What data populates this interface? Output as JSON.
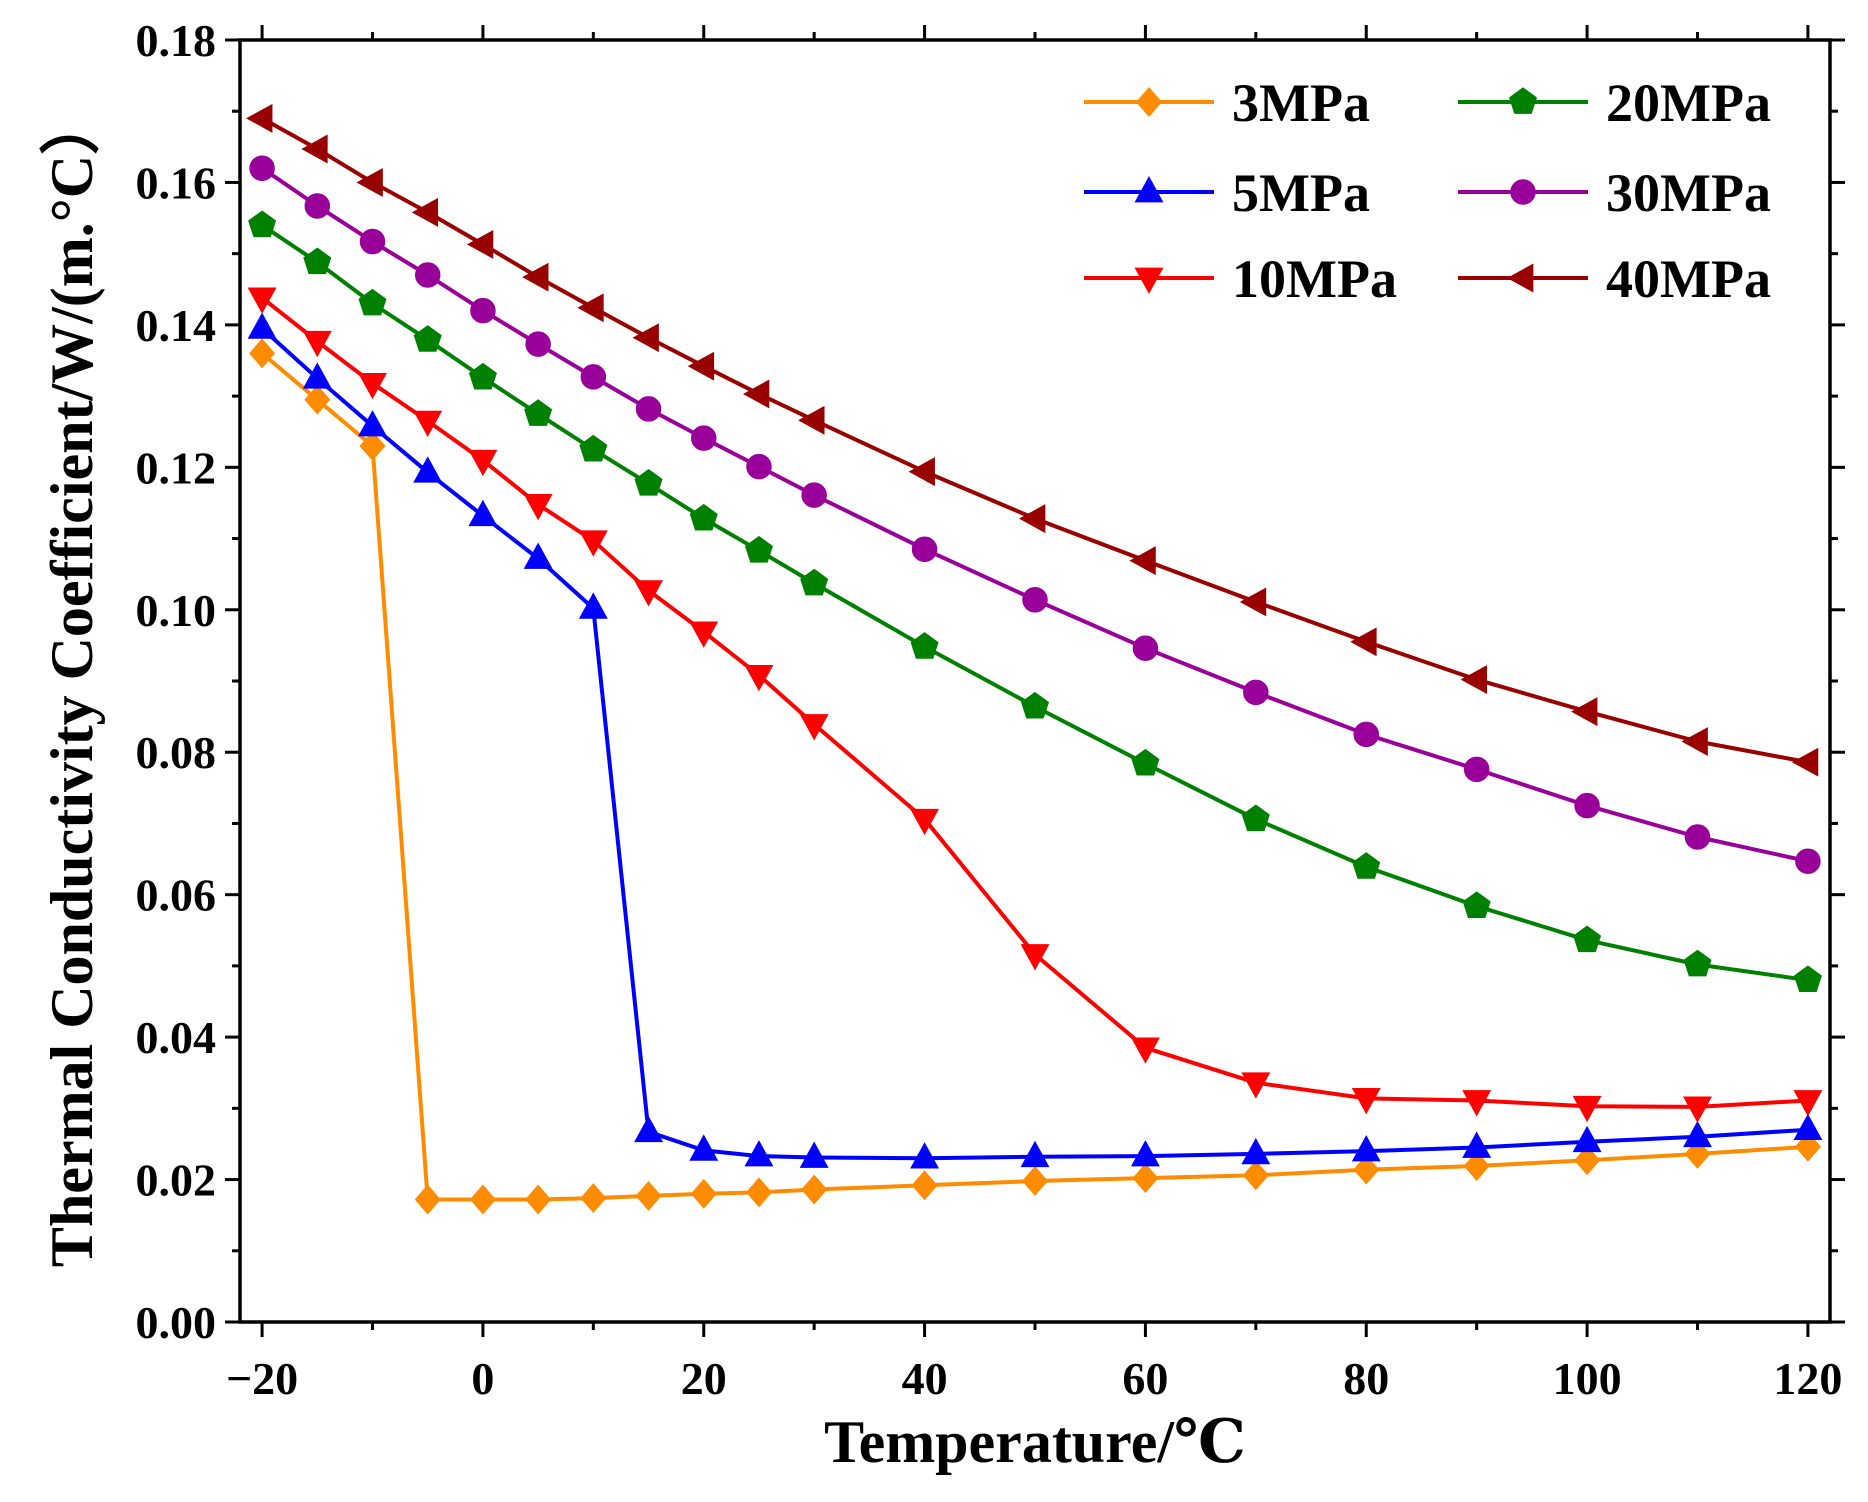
{
  "chart_data": {
    "type": "line",
    "title": "",
    "xlabel": "Temperature/℃",
    "ylabel": "Thermal Conductivity Coefficient/W/(m.°C）",
    "xlim": [
      -22,
      122
    ],
    "ylim": [
      0,
      0.18
    ],
    "xticks": [
      -20,
      0,
      20,
      40,
      60,
      80,
      100,
      120
    ],
    "xtick_labels": [
      "−20",
      "0",
      "20",
      "40",
      "60",
      "80",
      "100",
      "120"
    ],
    "yticks": [
      0,
      0.02,
      0.04,
      0.06,
      0.08,
      0.1,
      0.12,
      0.14,
      0.16,
      0.18
    ],
    "ytick_labels": [
      "0.00",
      "0.02",
      "0.04",
      "0.06",
      "0.08",
      "0.10",
      "0.12",
      "0.14",
      "0.16",
      "0.18"
    ],
    "grid": false,
    "legend_position": "top-right",
    "x": [
      -20,
      -15,
      -10,
      -5,
      0,
      5,
      10,
      15,
      20,
      25,
      30,
      40,
      50,
      60,
      70,
      80,
      90,
      100,
      110,
      120
    ],
    "series": [
      {
        "name": "3MPa",
        "color": "#FF8C00",
        "marker": "diamond",
        "values": [
          0.136,
          0.1295,
          0.123,
          0.0172,
          0.0172,
          0.0172,
          0.0174,
          0.0177,
          0.018,
          0.0182,
          0.0186,
          0.0192,
          0.0198,
          0.0202,
          0.0206,
          0.0214,
          0.0219,
          0.0227,
          0.0236,
          0.0246
        ]
      },
      {
        "name": "5MPa",
        "color": "#0000FF",
        "marker": "triangle-up",
        "values": [
          0.1395,
          0.1325,
          0.1258,
          0.1193,
          0.1132,
          0.1072,
          0.1002,
          0.0267,
          0.0241,
          0.0233,
          0.0231,
          0.023,
          0.0232,
          0.0233,
          0.0236,
          0.024,
          0.0245,
          0.0253,
          0.026,
          0.027
        ]
      },
      {
        "name": "10MPa",
        "color": "#FF0000",
        "marker": "triangle-down",
        "values": [
          0.1438,
          0.1377,
          0.1318,
          0.1265,
          0.121,
          0.1148,
          0.1097,
          0.1027,
          0.0969,
          0.0908,
          0.0839,
          0.0706,
          0.0516,
          0.0385,
          0.0336,
          0.0314,
          0.0311,
          0.0303,
          0.0302,
          0.0311
        ]
      },
      {
        "name": "20MPa",
        "color": "#008000",
        "marker": "pentagon",
        "values": [
          0.154,
          0.1488,
          0.143,
          0.1379,
          0.1326,
          0.1275,
          0.1225,
          0.1177,
          0.1128,
          0.1083,
          0.1037,
          0.0948,
          0.0864,
          0.0784,
          0.0706,
          0.0639,
          0.0584,
          0.0536,
          0.0502,
          0.048
        ]
      },
      {
        "name": "30MPa",
        "color": "#990099",
        "marker": "circle",
        "values": [
          0.162,
          0.1567,
          0.1517,
          0.147,
          0.142,
          0.1373,
          0.1327,
          0.1282,
          0.1241,
          0.1201,
          0.1161,
          0.1085,
          0.1014,
          0.0946,
          0.0884,
          0.0825,
          0.0776,
          0.0725,
          0.0681,
          0.0647
        ]
      },
      {
        "name": "40MPa",
        "color": "#990000",
        "marker": "triangle-left",
        "values": [
          0.169,
          0.1647,
          0.16,
          0.1558,
          0.1513,
          0.1467,
          0.1424,
          0.1382,
          0.1342,
          0.1303,
          0.1266,
          0.1194,
          0.1128,
          0.1069,
          0.1011,
          0.0955,
          0.0902,
          0.0857,
          0.0815,
          0.0786
        ]
      }
    ]
  }
}
